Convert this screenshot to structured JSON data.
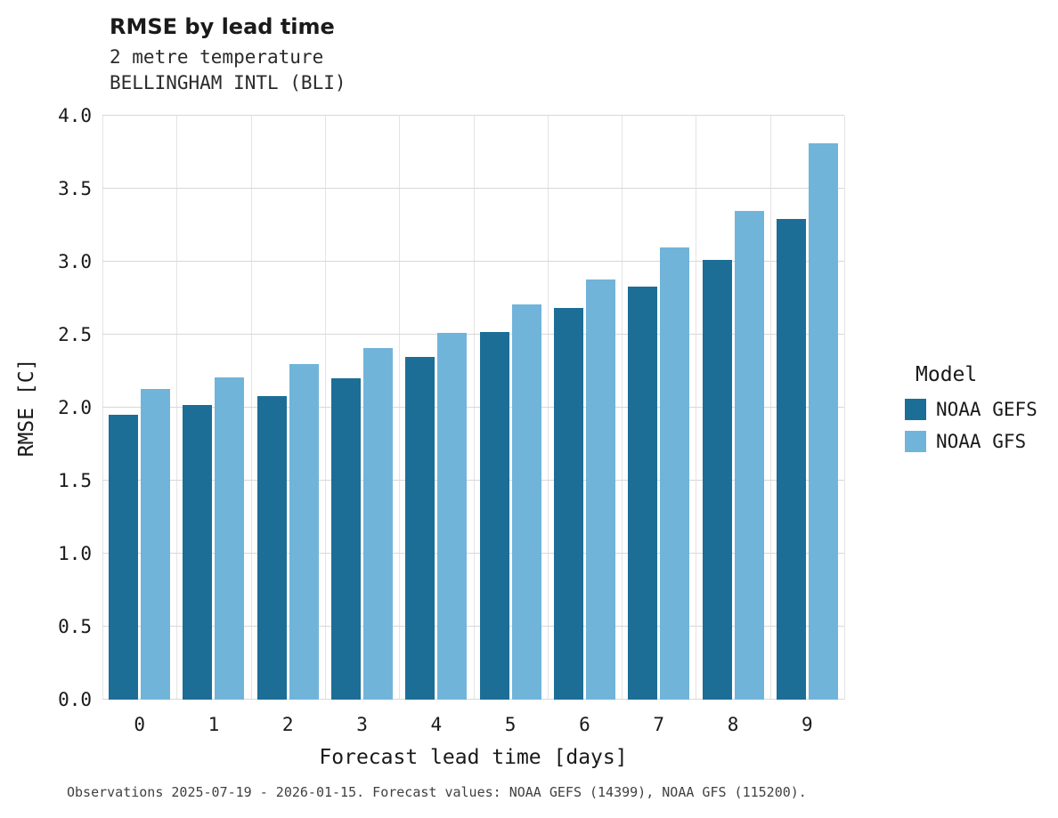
{
  "header": {
    "title": "RMSE by lead time",
    "subtitle_line1": "2 metre temperature",
    "subtitle_line2": "BELLINGHAM INTL (BLI)"
  },
  "legend": {
    "title": "Model",
    "items": [
      {
        "label": "NOAA GEFS",
        "color": "#1c6e96"
      },
      {
        "label": "NOAA GFS",
        "color": "#71b4da"
      }
    ]
  },
  "footer": {
    "caption": "Observations 2025-07-19 - 2026-01-15. Forecast values: NOAA GEFS (14399), NOAA GFS (115200)."
  },
  "chart_data": {
    "type": "bar",
    "title": "RMSE by lead time",
    "subtitle": "2 metre temperature — BELLINGHAM INTL (BLI)",
    "xlabel": "Forecast lead time [days]",
    "ylabel": "RMSE [C]",
    "categories": [
      "0",
      "1",
      "2",
      "3",
      "4",
      "5",
      "6",
      "7",
      "8",
      "9"
    ],
    "series": [
      {
        "name": "NOAA GEFS",
        "color": "#1c6e96",
        "values": [
          1.95,
          2.02,
          2.08,
          2.2,
          2.35,
          2.52,
          2.68,
          2.83,
          3.01,
          3.29
        ]
      },
      {
        "name": "NOAA GFS",
        "color": "#71b4da",
        "values": [
          2.13,
          2.21,
          2.3,
          2.41,
          2.51,
          2.71,
          2.88,
          3.1,
          3.35,
          3.81
        ]
      }
    ],
    "ylim": [
      0,
      4.0
    ],
    "ytick_labels": [
      "0.0",
      "0.5",
      "1.0",
      "1.5",
      "2.0",
      "2.5",
      "3.0",
      "3.5",
      "4.0"
    ],
    "grid": "horizontal-major",
    "legend_position": "right"
  }
}
